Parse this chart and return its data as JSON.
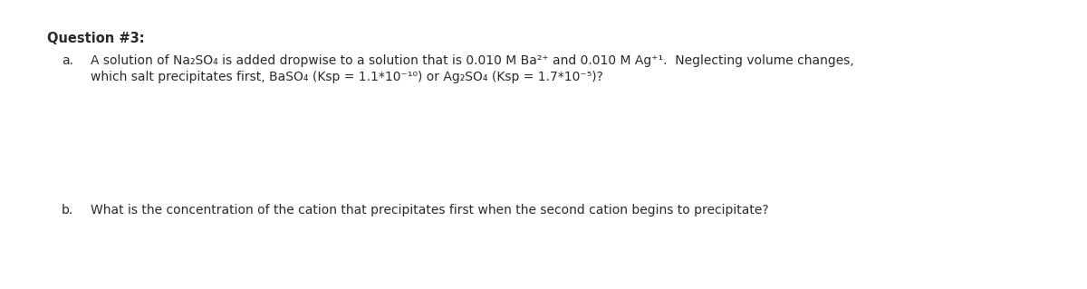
{
  "background_color": "#ffffff",
  "title": "Question #3:",
  "title_fontsize": 10.5,
  "title_fontweight": "bold",
  "line_a_label": "a.",
  "line_a_fontsize": 10,
  "line_a_text1": "A solution of Na₂SO₄ is added dropwise to a solution that is 0.010 M Ba²⁺ and 0.010 M Ag⁺¹.  Neglecting volume changes,",
  "line_a_text2": "which salt precipitates first, BaSO₄ (Ksp = 1.1*10⁻¹⁰) or Ag₂SO₄ (Ksp = 1.7*10⁻⁵)?",
  "line_b_label": "b.",
  "line_b_fontsize": 10,
  "line_b_text": "What is the concentration of the cation that precipitates first when the second cation begins to precipitate?",
  "text_color": "#2a2a2a"
}
